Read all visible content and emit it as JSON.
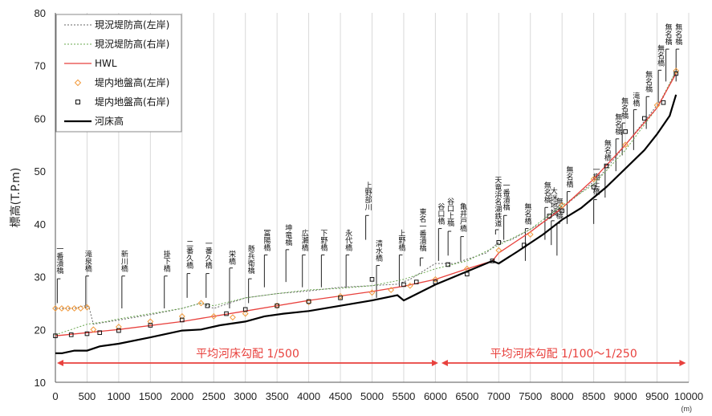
{
  "chart_data": {
    "type": "line",
    "ylabel": "標高(T.P.m)",
    "xunit": "(m)",
    "xlim": [
      0,
      10000
    ],
    "ylim": [
      10,
      80
    ],
    "xticks": [
      0,
      500,
      1000,
      1500,
      2000,
      2500,
      3000,
      3500,
      4000,
      4500,
      5000,
      5500,
      6000,
      6500,
      7000,
      7500,
      8000,
      8500,
      9000,
      9500,
      10000
    ],
    "yticks": [
      10,
      20,
      30,
      40,
      50,
      60,
      70,
      80
    ],
    "grid": "vertical",
    "legend_position": "top-left",
    "colors": {
      "levee_left": "#666666",
      "levee_right": "#6aa84f",
      "hwl": "#e8413d",
      "ground_left": "#f29a3c",
      "ground_right": "#111111",
      "bed": "#000000",
      "gradient": "#e8413d"
    },
    "series": [
      {
        "name": "現況堤防高(左岸)",
        "style": "dotted-line",
        "x": [
          0,
          300,
          450,
          530,
          600,
          1000,
          1500,
          2000,
          2300,
          2500,
          3000,
          3500,
          4000,
          4500,
          5000,
          5400,
          5600,
          5800,
          6000,
          6300,
          6800,
          7000,
          7200,
          7500,
          7800,
          8000,
          8300,
          8600,
          8800,
          9000,
          9200,
          9400,
          9600,
          9800
        ],
        "y": [
          24,
          24,
          24.5,
          24.3,
          21,
          21.8,
          22.8,
          24,
          25,
          24,
          26,
          26.8,
          27.3,
          28,
          28.3,
          28.6,
          29.5,
          31,
          32.5,
          32.5,
          34.5,
          36.5,
          37,
          39,
          41,
          43,
          46,
          49,
          52,
          55,
          58,
          61,
          64,
          69
        ]
      },
      {
        "name": "現況堤防高(右岸)",
        "style": "dotted-line",
        "x": [
          0,
          500,
          800,
          1000,
          1500,
          2000,
          2300,
          2500,
          3000,
          3500,
          4000,
          4500,
          5000,
          5500,
          6000,
          6500,
          7000,
          7500,
          8000,
          8500,
          9000,
          9500,
          9800
        ],
        "y": [
          19,
          21,
          21.5,
          22,
          23,
          24,
          25,
          24.5,
          26,
          26.8,
          27.5,
          27.8,
          28.3,
          29.5,
          31.5,
          33,
          36,
          39,
          43.5,
          47.5,
          54,
          62,
          69
        ]
      },
      {
        "name": "HWL",
        "style": "line",
        "x": [
          0,
          1000,
          2000,
          3000,
          4000,
          5000,
          5500,
          6000,
          6500,
          6900,
          7000,
          7500,
          8000,
          8500,
          9000,
          9500,
          9800
        ],
        "y": [
          18.8,
          20,
          21.5,
          23.5,
          25.5,
          27.2,
          28.2,
          29.5,
          31.5,
          33,
          34.5,
          38.5,
          43,
          48.5,
          55,
          62,
          68.5
        ]
      },
      {
        "name": "堤内地盤高(左岸)",
        "style": "diamond",
        "x": [
          0,
          100,
          200,
          300,
          400,
          500,
          600,
          1000,
          1500,
          2000,
          2300,
          2500,
          2800,
          3000,
          3500,
          4000,
          4500,
          5000,
          5300,
          5600,
          6000,
          6500,
          7000,
          7500,
          8000,
          8500,
          9000,
          9500,
          9800
        ],
        "y": [
          24,
          24,
          24,
          24,
          24,
          24.2,
          20,
          20.5,
          21.5,
          22.5,
          25,
          22.5,
          22.3,
          23,
          24.5,
          25.2,
          26.3,
          27,
          27.5,
          28.3,
          29.5,
          31.5,
          35,
          38,
          43.5,
          48.5,
          55,
          62.5,
          69
        ]
      },
      {
        "name": "堤内地盤高(右岸)",
        "style": "square",
        "x": [
          0,
          250,
          500,
          700,
          1000,
          1500,
          2000,
          2400,
          2700,
          3000,
          3500,
          4000,
          4500,
          5000,
          5500,
          5700,
          6000,
          6200,
          6500,
          6900,
          7000,
          7400,
          7800,
          8000,
          8500,
          8700,
          9000,
          9300,
          9600,
          9800
        ],
        "y": [
          18.8,
          19,
          19.2,
          19.4,
          19.8,
          20.8,
          21.8,
          24.5,
          23,
          23.8,
          24.5,
          25.3,
          26,
          29.5,
          28.5,
          29,
          29,
          32.3,
          30.5,
          33,
          36.5,
          36,
          41.5,
          42.5,
          47,
          51,
          57.5,
          60,
          63,
          68.5
        ]
      },
      {
        "name": "河床高",
        "style": "thick-line",
        "x": [
          0,
          100,
          300,
          500,
          700,
          1000,
          1500,
          2000,
          2300,
          2600,
          3000,
          3300,
          3600,
          4000,
          4500,
          5000,
          5400,
          5500,
          6000,
          6500,
          6900,
          7000,
          7300,
          7700,
          8000,
          8300,
          8500,
          8700,
          9000,
          9300,
          9500,
          9700,
          9800
        ],
        "y": [
          15.5,
          15.5,
          16,
          16,
          16.8,
          17.3,
          18.5,
          19.8,
          20,
          20.8,
          21.5,
          22.5,
          23,
          23.5,
          24.5,
          25.5,
          26.5,
          25.5,
          28.5,
          31,
          33,
          32.5,
          34.8,
          38,
          40.8,
          43,
          45,
          47,
          50.5,
          54,
          57,
          60.5,
          64.5
        ]
      }
    ],
    "bridges": [
      {
        "name": "一番潰橋",
        "x": 30,
        "top": 36
      },
      {
        "name": "滝泉橋",
        "x": 480,
        "top": 35
      },
      {
        "name": "新川橋",
        "x": 1050,
        "top": 35
      },
      {
        "name": "掛下橋",
        "x": 1720,
        "top": 35
      },
      {
        "name": "二番久橋",
        "x": 2080,
        "top": 37
      },
      {
        "name": "一番久橋",
        "x": 2380,
        "top": 37
      },
      {
        "name": "栄橋",
        "x": 2750,
        "top": 35
      },
      {
        "name": "懸兵衛橋",
        "x": 3050,
        "top": 36
      },
      {
        "name": "冨陽橋",
        "x": 3300,
        "top": 39
      },
      {
        "name": "坤竜橋",
        "x": 3640,
        "top": 40
      },
      {
        "name": "広瀬橋",
        "x": 3900,
        "top": 39
      },
      {
        "name": "下野橋",
        "x": 4200,
        "top": 39
      },
      {
        "name": "永代橋",
        "x": 4590,
        "top": 39
      },
      {
        "name": "上野部川",
        "x": 4900,
        "top": 48
      },
      {
        "name": "清水橋",
        "x": 5070,
        "top": 37
      },
      {
        "name": "上野橋",
        "x": 5430,
        "top": 39
      },
      {
        "name": "東名一番潰橋",
        "x": 5760,
        "top": 43
      },
      {
        "name": "谷口橋",
        "x": 6050,
        "top": 44
      },
      {
        "name": "谷口上橋",
        "x": 6200,
        "top": 45
      },
      {
        "name": "亀井戸橋",
        "x": 6400,
        "top": 44
      },
      {
        "name": "天竜浜名湖鉄道",
        "x": 6950,
        "top": 49
      },
      {
        "name": "一番潰橋",
        "x": 7080,
        "top": 48
      },
      {
        "name": "無名橋",
        "x": 7420,
        "top": 44
      },
      {
        "name": "無名橋",
        "x": 7730,
        "top": 48
      },
      {
        "name": "大迷地橋",
        "x": 7830,
        "top": 47
      },
      {
        "name": "無名橋",
        "x": 7920,
        "top": 45
      },
      {
        "name": "無名橋",
        "x": 8080,
        "top": 51
      },
      {
        "name": "一棚土橋",
        "x": 8500,
        "top": 51
      },
      {
        "name": "無名橋",
        "x": 8680,
        "top": 56
      },
      {
        "name": "無名橋",
        "x": 8850,
        "top": 61
      },
      {
        "name": "無名橋",
        "x": 8950,
        "top": 64
      },
      {
        "name": "滝橋",
        "x": 9130,
        "top": 65
      },
      {
        "name": "無名橋",
        "x": 9330,
        "top": 69
      },
      {
        "name": "無名橋",
        "x": 9520,
        "top": 74
      },
      {
        "name": "無名橋",
        "x": 9640,
        "top": 78
      },
      {
        "name": "無名橋",
        "x": 9800,
        "top": 78
      }
    ],
    "annotations": [
      {
        "text": "平均河床勾配 1/500",
        "from": 0,
        "to": 6070
      },
      {
        "text": "平均河床勾配 1/100～1/250",
        "from": 6070,
        "to": 9980
      }
    ]
  }
}
